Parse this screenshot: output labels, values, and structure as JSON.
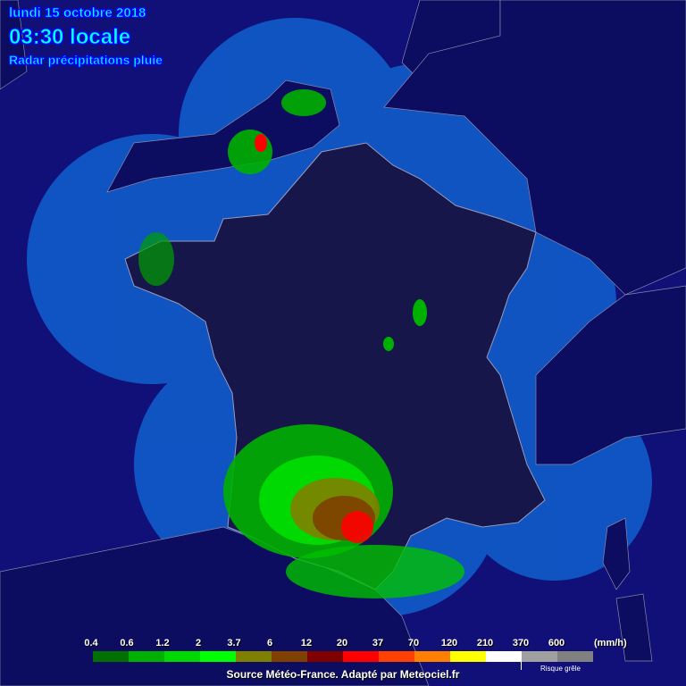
{
  "header": {
    "date": "lundi 15 octobre 2018",
    "time": "03:30 locale",
    "subtitle": "Radar précipitations pluie"
  },
  "legend": {
    "ticks": [
      "0.4",
      "0.6",
      "1.2",
      "2",
      "3.7",
      "6",
      "12",
      "20",
      "37",
      "70",
      "120",
      "210",
      "370",
      "600"
    ],
    "unit": "(mm/h)",
    "colors": [
      "#007000",
      "#00b000",
      "#00d800",
      "#00ff00",
      "#808000",
      "#804000",
      "#800000",
      "#ff0000",
      "#ff4000",
      "#ff8000",
      "#ffff00",
      "#ffffff",
      "#a0a0a0",
      "#808080"
    ],
    "hail_label": "Risque grêle"
  },
  "source": "Source Météo-France. Adapté par Meteociel.fr",
  "colors": {
    "sea": "#101070",
    "coverage": "#1060d0",
    "land": "#16164a",
    "land_outside": "#0c0c5a"
  }
}
